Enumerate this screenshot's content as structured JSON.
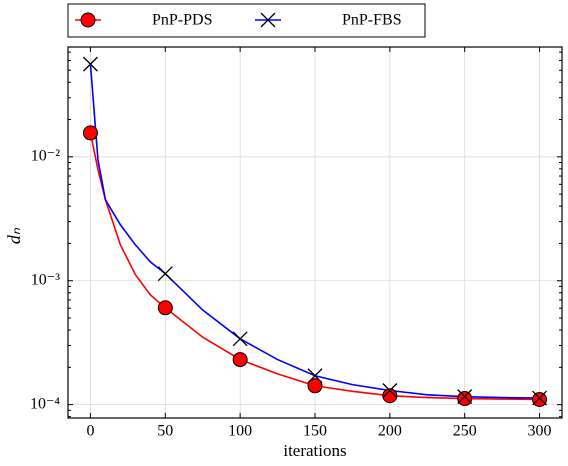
{
  "chart_data": {
    "type": "line",
    "x": [
      0,
      5,
      10,
      20,
      30,
      40,
      50,
      75,
      100,
      125,
      150,
      175,
      200,
      225,
      250,
      275,
      300
    ],
    "series": [
      {
        "name": "PnP-PDS",
        "color": "#ff0000",
        "marker": "o",
        "values": [
          0.0156,
          0.0079,
          0.0045,
          0.00195,
          0.00112,
          0.00077,
          0.000605,
          0.00035,
          0.000231,
          0.000177,
          0.000142,
          0.000128,
          0.000118,
          0.000114,
          0.000112,
          0.000111,
          0.00011
        ]
      },
      {
        "name": "PnP-FBS",
        "color": "#0000ff",
        "marker": "x",
        "values": [
          0.056,
          0.0095,
          0.0045,
          0.00283,
          0.00195,
          0.00142,
          0.00114,
          0.00058,
          0.00034,
          0.000231,
          0.000171,
          0.000145,
          0.00013,
          0.00012,
          0.000116,
          0.000114,
          0.000113
        ]
      }
    ],
    "markevery": 50,
    "xlabel": "iterations",
    "ylabel": "dₙ",
    "xlim": [
      -15,
      315
    ],
    "xticks": [
      0,
      50,
      100,
      150,
      200,
      250,
      300
    ],
    "ylim": [
      7.8e-05,
      0.077
    ],
    "ylog": true,
    "yticks": [
      {
        "value": 0.0001,
        "label": "10⁻⁴"
      },
      {
        "value": 0.001,
        "label": "10⁻³"
      },
      {
        "value": 0.01,
        "label": "10⁻²"
      }
    ],
    "grid": true,
    "legend": "upper center outside"
  }
}
